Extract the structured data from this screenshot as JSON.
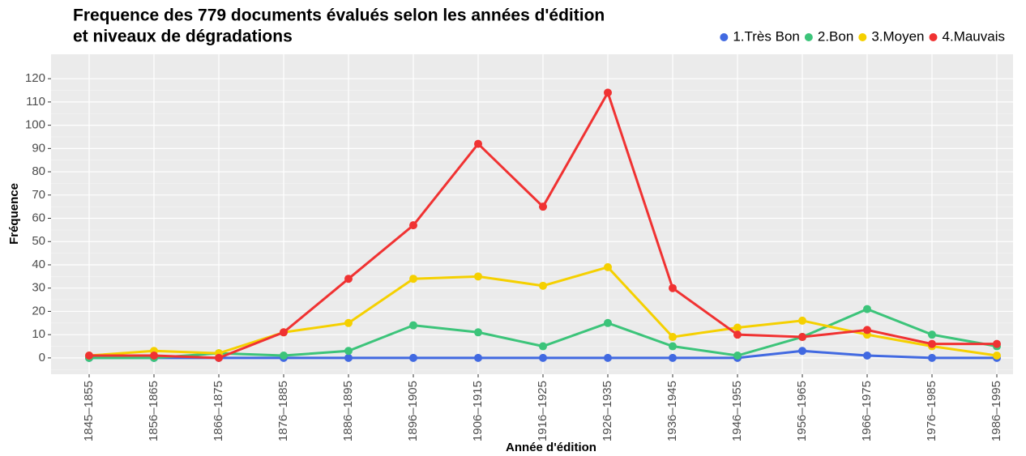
{
  "chart_data": {
    "type": "line",
    "title": [
      "Frequence des 779 documents évalués selon les années d'édition",
      "et niveaux de dégradations"
    ],
    "x_label": "Année d'édition",
    "y_label": "Fréquence",
    "categories": [
      "1845–1855",
      "1856–1865",
      "1866–1875",
      "1876–1885",
      "1886–1895",
      "1896–1905",
      "1906–1915",
      "1916–1925",
      "1926–1935",
      "1936–1945",
      "1946–1955",
      "1956–1965",
      "1966–1975",
      "1976–1985",
      "1986–1995"
    ],
    "series": [
      {
        "name": "1.Très Bon",
        "color": "#4169e1",
        "values": [
          0,
          0,
          0,
          0,
          0,
          0,
          0,
          0,
          0,
          0,
          0,
          3,
          1,
          0,
          0
        ]
      },
      {
        "name": "2.Bon",
        "color": "#3cc47a",
        "values": [
          0,
          0,
          2,
          1,
          3,
          14,
          11,
          5,
          15,
          5,
          1,
          9,
          21,
          10,
          5
        ]
      },
      {
        "name": "3.Moyen",
        "color": "#f5d000",
        "values": [
          1,
          3,
          2,
          11,
          15,
          34,
          35,
          31,
          39,
          9,
          13,
          16,
          10,
          5,
          1
        ]
      },
      {
        "name": "4.Mauvais",
        "color": "#f03232",
        "values": [
          1,
          1,
          0,
          11,
          34,
          57,
          92,
          65,
          114,
          30,
          10,
          9,
          12,
          6,
          6
        ]
      }
    ],
    "ylim": [
      -7,
      130.5
    ],
    "yticks": [
      0,
      10,
      20,
      30,
      40,
      50,
      60,
      70,
      80,
      90,
      100,
      110,
      120
    ],
    "grid": true,
    "legend": "top-right"
  }
}
